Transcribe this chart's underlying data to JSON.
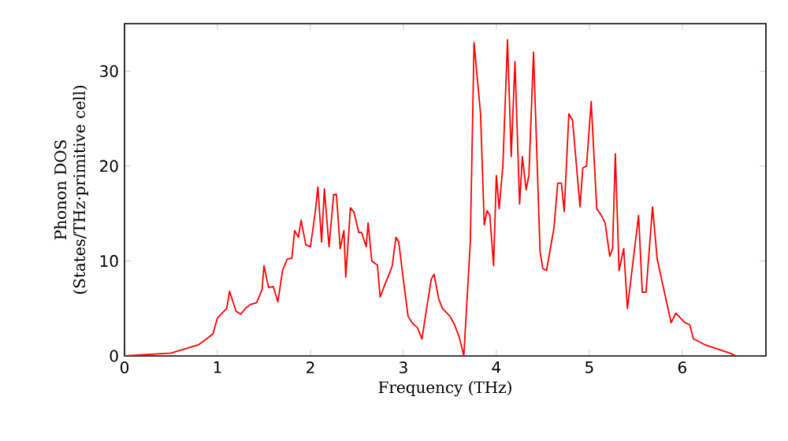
{
  "chart_data": {
    "type": "line",
    "xlabel": "Frequency (THz)",
    "ylabel": "Phonon DOS (States/THz·primitive cell)",
    "xlim": [
      0,
      6.9
    ],
    "ylim": [
      0,
      35
    ],
    "xticks": [
      0,
      1,
      2,
      3,
      4,
      5,
      6
    ],
    "yticks": [
      0,
      10,
      20,
      30
    ],
    "x": [
      0,
      0.5,
      0.8,
      0.95,
      1.0,
      1.05,
      1.1,
      1.13,
      1.2,
      1.25,
      1.3,
      1.35,
      1.42,
      1.48,
      1.5,
      1.55,
      1.6,
      1.65,
      1.7,
      1.75,
      1.8,
      1.83,
      1.87,
      1.9,
      1.95,
      2.0,
      2.05,
      2.08,
      2.12,
      2.15,
      2.2,
      2.25,
      2.28,
      2.32,
      2.36,
      2.38,
      2.43,
      2.47,
      2.52,
      2.55,
      2.6,
      2.62,
      2.66,
      2.7,
      2.72,
      2.75,
      2.8,
      2.85,
      2.88,
      2.92,
      2.95,
      3.0,
      3.05,
      3.1,
      3.15,
      3.2,
      3.25,
      3.3,
      3.33,
      3.38,
      3.42,
      3.5,
      3.55,
      3.6,
      3.65,
      3.72,
      3.76,
      3.83,
      3.87,
      3.9,
      3.93,
      3.97,
      4.0,
      4.03,
      4.07,
      4.12,
      4.16,
      4.2,
      4.25,
      4.28,
      4.32,
      4.35,
      4.4,
      4.47,
      4.5,
      4.54,
      4.62,
      4.66,
      4.7,
      4.73,
      4.78,
      4.82,
      4.9,
      4.93,
      4.97,
      5.02,
      5.08,
      5.13,
      5.17,
      5.22,
      5.25,
      5.28,
      5.32,
      5.37,
      5.41,
      5.53,
      5.57,
      5.61,
      5.68,
      5.73,
      5.88,
      5.93,
      6.03,
      6.08,
      6.12,
      6.24,
      6.51,
      6.58
    ],
    "series": [
      {
        "color": "#ff0000",
        "values": [
          0,
          0.3,
          1.2,
          2.3,
          4.0,
          4.5,
          5.0,
          6.8,
          4.7,
          4.4,
          5.0,
          5.4,
          5.6,
          7.0,
          9.5,
          7.2,
          7.3,
          5.7,
          9.0,
          10.2,
          10.3,
          13.2,
          12.5,
          14.3,
          11.7,
          11.5,
          15,
          17.8,
          12.0,
          17.6,
          11.5,
          17.0,
          17.0,
          11.3,
          13.2,
          8.3,
          15.6,
          15.1,
          13.0,
          13.0,
          11.5,
          14.0,
          10.0,
          9.7,
          9.6,
          6.2,
          7.5,
          8.7,
          9.5,
          12.5,
          12.0,
          8.0,
          4.2,
          3.4,
          3.0,
          1.8,
          5.0,
          8.1,
          8.6,
          6.0,
          5.0,
          4.2,
          3.3,
          2.0,
          0.0,
          12,
          33.0,
          25.5,
          13.8,
          15.3,
          14.8,
          9.5,
          19.0,
          15.5,
          20.0,
          33.3,
          21.0,
          31.0,
          16.0,
          21.0,
          17.5,
          19.0,
          32.0,
          11,
          9.2,
          9,
          13.5,
          18.2,
          18.2,
          15.2,
          25.5,
          24.8,
          15.7,
          19.8,
          20,
          26.8,
          15.5,
          14.8,
          14,
          10.5,
          11.3,
          21.3,
          9,
          11.3,
          5,
          14.8,
          6.7,
          6.7,
          15.7,
          10.2,
          3.5,
          4.5,
          3.5,
          3.3,
          1.8,
          1.2,
          0.3,
          0
        ]
      }
    ]
  }
}
